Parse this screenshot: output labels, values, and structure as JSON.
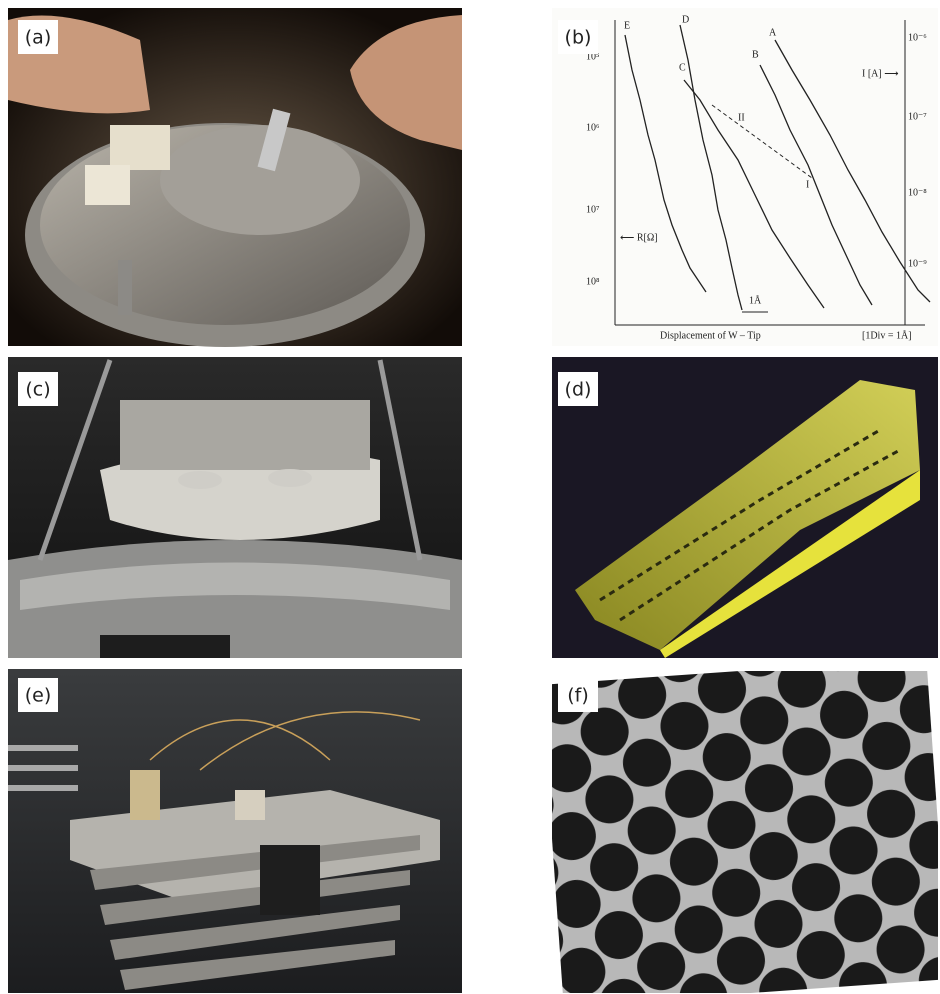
{
  "panels": [
    "(a)",
    "(b)",
    "(c)",
    "(d)",
    "(e)",
    "(f)"
  ],
  "panel_b": {
    "curve_labels": [
      "E",
      "D",
      "C",
      "B",
      "A"
    ],
    "branch_labels": [
      "II",
      "I"
    ],
    "left_ticks": [
      "10⁵",
      "10⁶",
      "10⁷",
      "10⁸"
    ],
    "right_ticks": [
      "10⁻⁶",
      "10⁻⁷",
      "10⁻⁸",
      "10⁻⁹"
    ],
    "right_axis_label": "I [A] ⟶",
    "left_axis_label": "⟵ R[Ω]",
    "scale_label": "1Å",
    "x_axis_label": "Displacement of W – Tip",
    "x_scale_note": "[1Div = 1Å]"
  }
}
